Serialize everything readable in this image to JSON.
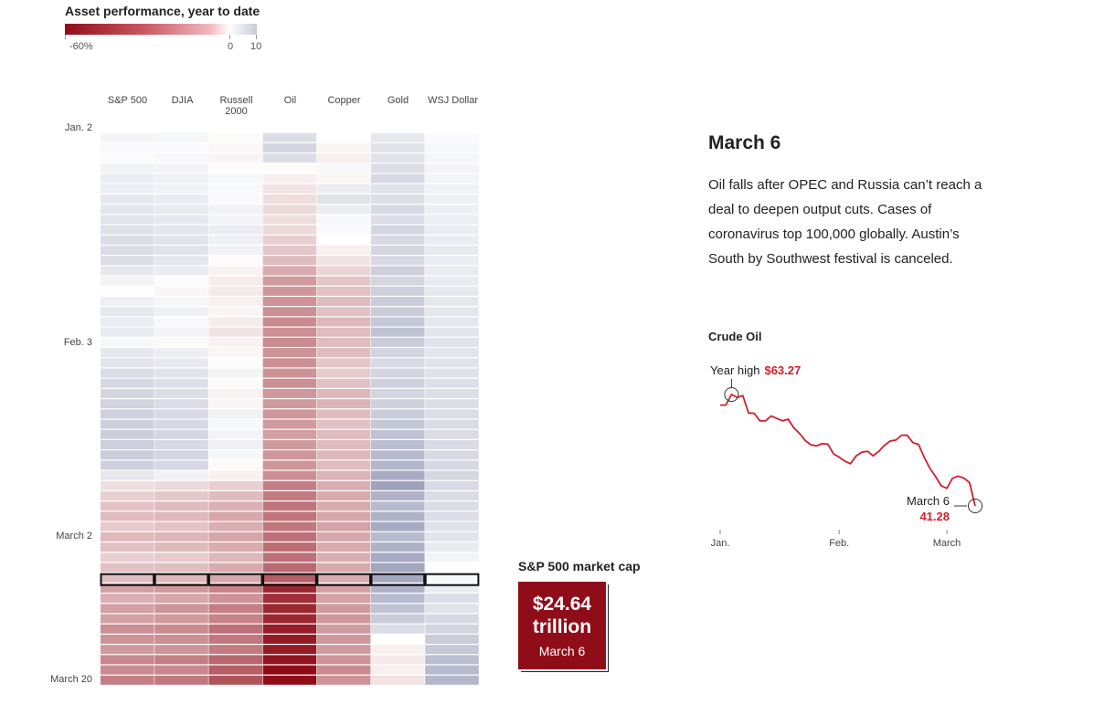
{
  "legend": {
    "title": "Asset performance, year to date",
    "min_label": "-60%",
    "zero_label": "0",
    "max_label": "10",
    "scale_min": -60,
    "scale_max": 10,
    "neg_color": "#8f0d18",
    "pos_color": "#9fa3bd"
  },
  "chart_data": [
    {
      "type": "heatmap",
      "title": "Asset performance, year to date",
      "columns": [
        "S&P 500",
        "DJIA",
        "Russell 2000",
        "Oil",
        "Copper",
        "Gold",
        "WSJ Dollar"
      ],
      "row_labels": [
        {
          "label": "Jan. 2",
          "row": 0
        },
        {
          "label": "Feb. 3",
          "row": 21
        },
        {
          "label": "March 2",
          "row": 40
        },
        {
          "label": "March 20",
          "row": 54
        }
      ],
      "highlight_row": 44,
      "values": [
        [
          0,
          0,
          0,
          0,
          0,
          0,
          0
        ],
        [
          0.8,
          0.6,
          -0.5,
          3,
          0,
          2,
          0.3
        ],
        [
          0.4,
          0.3,
          -0.8,
          4,
          -1,
          2.5,
          0.5
        ],
        [
          0.2,
          0.4,
          -1.2,
          3,
          -2,
          2.5,
          0.6
        ],
        [
          1.0,
          0.8,
          0.2,
          -0.5,
          0.5,
          3,
          0.8
        ],
        [
          1.6,
          1.2,
          0.6,
          -2,
          -1,
          3.5,
          0.8
        ],
        [
          1.4,
          1.0,
          0.4,
          -4,
          1.5,
          2.5,
          1.0
        ],
        [
          2.0,
          1.6,
          0.3,
          -5,
          2.5,
          3,
          1.2
        ],
        [
          2.2,
          1.8,
          1.0,
          -6,
          1.5,
          3.5,
          1.3
        ],
        [
          2.4,
          1.9,
          0.8,
          -5,
          0.5,
          3,
          1.4
        ],
        [
          2.6,
          2.1,
          1.5,
          -6,
          0.3,
          4,
          1.5
        ],
        [
          3.0,
          2.4,
          1.2,
          -8,
          0.0,
          3.5,
          1.6
        ],
        [
          3.2,
          2.5,
          1.0,
          -10,
          -2,
          4,
          1.8
        ],
        [
          3.0,
          2.2,
          -0.4,
          -12,
          -4,
          3.5,
          1.5
        ],
        [
          2.0,
          1.6,
          -1.5,
          -16,
          -7,
          4.5,
          1.6
        ],
        [
          0.8,
          0.2,
          -2.5,
          -20,
          -10,
          4,
          1.7
        ],
        [
          -0.2,
          -1.0,
          -3.0,
          -21,
          -11,
          4.5,
          1.9
        ],
        [
          1.2,
          0.6,
          -2.0,
          -22,
          -12,
          5,
          2.0
        ],
        [
          2.0,
          1.2,
          -1.0,
          -23,
          -11,
          5,
          2.1
        ],
        [
          1.6,
          0.4,
          -2.5,
          -24,
          -13,
          5.5,
          2.0
        ],
        [
          1.8,
          0.8,
          -4.0,
          -23,
          -12,
          6,
          2.2
        ],
        [
          0.5,
          -0.6,
          -1.5,
          -24,
          -12,
          5,
          2.4
        ],
        [
          2.0,
          1.4,
          -1.0,
          -22,
          -12,
          4,
          2.3
        ],
        [
          2.4,
          1.8,
          0.2,
          -23,
          -10,
          3.5,
          2.5
        ],
        [
          3.2,
          2.5,
          0.8,
          -22,
          -9,
          4,
          2.6
        ],
        [
          3.6,
          2.8,
          -0.5,
          -23,
          -11,
          4.5,
          2.8
        ],
        [
          4.0,
          3.0,
          -1.5,
          -21,
          -13,
          4,
          2.9
        ],
        [
          4.2,
          3.2,
          -1.0,
          -20,
          -14,
          4.5,
          3.0
        ],
        [
          4.4,
          3.4,
          1.0,
          -21,
          -12,
          5,
          3.1
        ],
        [
          4.6,
          3.6,
          0.5,
          -20,
          -11,
          5.5,
          3.2
        ],
        [
          4.8,
          3.8,
          0.8,
          -19,
          -12,
          6,
          3.2
        ],
        [
          4.6,
          3.5,
          1.2,
          -20,
          -12,
          6.5,
          3.4
        ],
        [
          4.9,
          3.9,
          0.6,
          -21,
          -13,
          7,
          3.5
        ],
        [
          4.4,
          3.6,
          -0.5,
          -21,
          -12,
          7.5,
          3.6
        ],
        [
          2.0,
          1.0,
          -2.0,
          -23,
          -14,
          9,
          3.8
        ],
        [
          -5.0,
          -6.0,
          -8.0,
          -27,
          -15,
          10,
          3.4
        ],
        [
          -8.0,
          -9.5,
          -12.0,
          -28,
          -16,
          8,
          3.2
        ],
        [
          -10.5,
          -12.0,
          -14.5,
          -30,
          -16,
          7,
          3.0
        ],
        [
          -12.0,
          -13.0,
          -17.0,
          -30,
          -17,
          8,
          3.1
        ],
        [
          -9.0,
          -10.5,
          -15.0,
          -29,
          -18,
          9,
          2.6
        ],
        [
          -13.0,
          -13.5,
          -17.5,
          -31,
          -17,
          7,
          2.3
        ],
        [
          -11.0,
          -12.5,
          -16.0,
          -32,
          -16,
          8,
          1.7
        ],
        [
          -8.0,
          -9.0,
          -13.0,
          -31,
          -15,
          9,
          0.8
        ],
        [
          -11.0,
          -11.5,
          -16.0,
          -33,
          -16,
          9.5,
          0.0
        ],
        [
          -12.0,
          -13.0,
          -17.0,
          -36,
          -16,
          9.5,
          0.5
        ],
        [
          -19.0,
          -20.5,
          -26.0,
          -52,
          -19,
          8,
          1.5
        ],
        [
          -15.0,
          -17.0,
          -22.0,
          -50,
          -18,
          7,
          3.0
        ],
        [
          -19.0,
          -21.5,
          -27.0,
          -52,
          -20,
          6,
          2.5
        ],
        [
          -18.5,
          -20.0,
          -26.0,
          -52,
          -21,
          5,
          3.5
        ],
        [
          -23.0,
          -24.0,
          -31.0,
          -55,
          -20,
          3,
          4.0
        ],
        [
          -22.0,
          -23.0,
          -29.0,
          -56,
          -21,
          0,
          5.0
        ],
        [
          -20.0,
          -21.5,
          -28.0,
          -56,
          -20,
          -2,
          5.5
        ],
        [
          -25.0,
          -27.0,
          -34.0,
          -58,
          -22,
          -3,
          6.5
        ],
        [
          -24.0,
          -25.0,
          -36.0,
          -66,
          -24,
          -2,
          7.0
        ],
        [
          -27.0,
          -29.0,
          -39.0,
          -66,
          -22,
          -4,
          7.5
        ]
      ]
    },
    {
      "type": "line",
      "title": "Crude Oil",
      "x_ticks": [
        "Jan.",
        "Feb.",
        "March"
      ],
      "x_tick_index": [
        0,
        21,
        40
      ],
      "values": [
        61.18,
        61.18,
        63.27,
        62.7,
        63.05,
        59.61,
        59.56,
        58.08,
        58.08,
        59.04,
        58.54,
        58.08,
        58.38,
        56.7,
        55.59,
        54.19,
        53.33,
        53.14,
        53.57,
        53.48,
        51.56,
        50.9,
        50.11,
        49.61,
        51.16,
        51.89,
        52.05,
        51.17,
        52.05,
        53.27,
        54.1,
        54.28,
        55.23,
        55.25,
        53.78,
        53.43,
        50.9,
        48.73,
        47.09,
        45.26,
        44.76,
        46.75,
        47.18,
        46.78,
        45.9,
        41.28
      ],
      "annotations": [
        {
          "label": "Year high",
          "value": "$63.27",
          "index": 2
        },
        {
          "label": "March 6",
          "value": "41.28",
          "index": 45
        }
      ],
      "line_color": "#d0202e"
    }
  ],
  "event": {
    "title": "March 6",
    "text": "Oil falls after OPEC and Russia can’t reach a deal to deepen output cuts. Cases of coronavirus top 100,000 globally. Austin’s South by Southwest festival is canceled."
  },
  "market_cap": {
    "title": "S&P 500 market cap",
    "value": "$24.64 trillion",
    "date": "March 6"
  }
}
